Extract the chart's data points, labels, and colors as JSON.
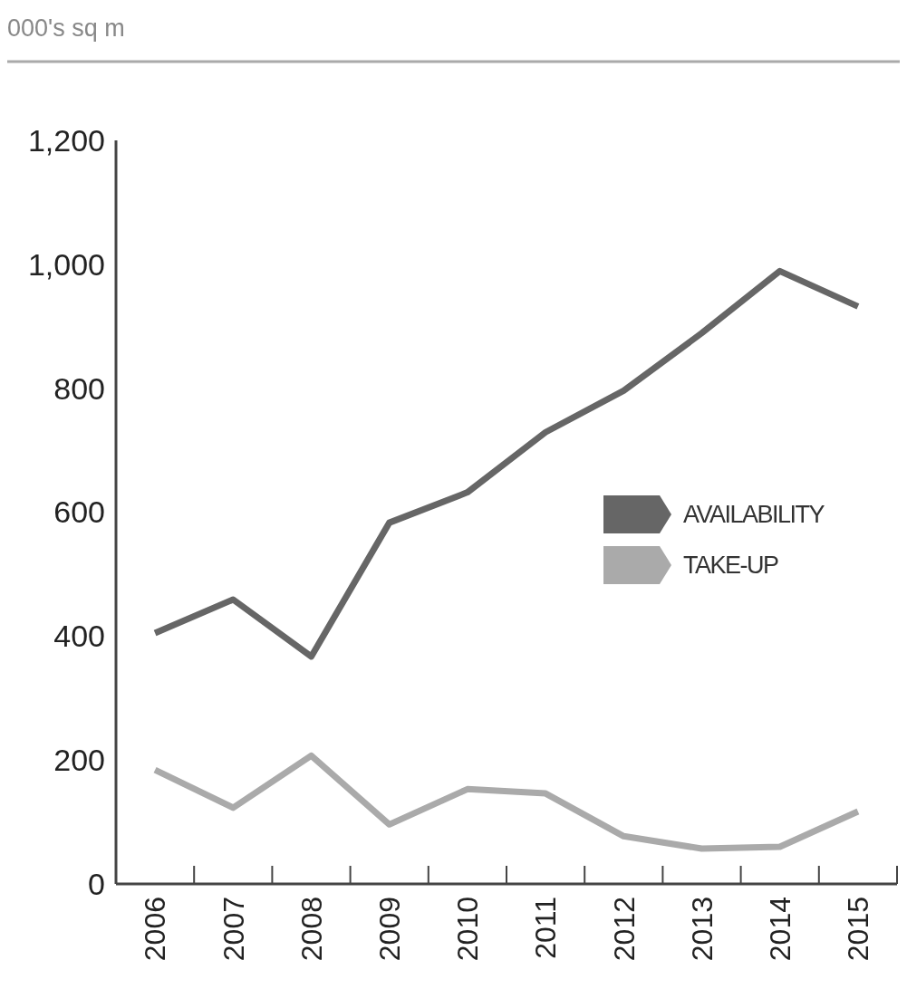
{
  "chart_data": {
    "type": "line",
    "title": "000's sq m",
    "categories": [
      "2006",
      "2007",
      "2008",
      "2009",
      "2010",
      "2011",
      "2012",
      "2013",
      "2014",
      "2015"
    ],
    "series": [
      {
        "name": "AVAILABILITY",
        "color": "#666666",
        "values": [
          405,
          459,
          367,
          583,
          632,
          729,
          796,
          889,
          989,
          932
        ]
      },
      {
        "name": "TAKE-UP",
        "color": "#aaaaaa",
        "values": [
          184,
          123,
          207,
          96,
          153,
          146,
          77,
          57,
          60,
          117
        ]
      }
    ],
    "ylim": [
      0,
      1200
    ],
    "yticks": [
      {
        "value": 0,
        "label": "0"
      },
      {
        "value": 200,
        "label": "200"
      },
      {
        "value": 400,
        "label": "400"
      },
      {
        "value": 600,
        "label": "600"
      },
      {
        "value": 800,
        "label": "800"
      },
      {
        "value": 1000,
        "label": "1,000"
      },
      {
        "value": 1200,
        "label": "1,200"
      }
    ],
    "legend": "right",
    "grid": false,
    "marker": "none",
    "line_style": "solid"
  }
}
